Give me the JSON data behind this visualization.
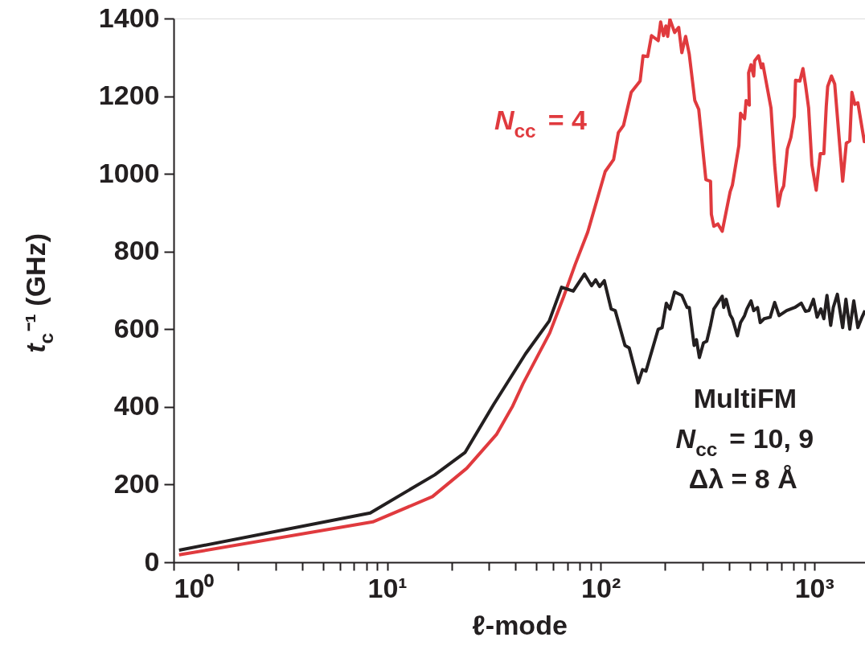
{
  "chart_data": {
    "type": "line",
    "xlabel": "ℓ-mode",
    "ylabel": "t$_{c}$⁻¹ (GHz)",
    "log": "x",
    "grid": false,
    "marker": "none",
    "line_style": "solid",
    "xlim": [
      1,
      1730
    ],
    "ylim": [
      0,
      1400
    ],
    "xticks": [
      {
        "value": 1,
        "label": "10⁰"
      },
      {
        "value": 2,
        "label": null
      },
      {
        "value": 3,
        "label": null
      },
      {
        "value": 4,
        "label": null
      },
      {
        "value": 5,
        "label": null
      },
      {
        "value": 6,
        "label": null
      },
      {
        "value": 7,
        "label": null
      },
      {
        "value": 8,
        "label": null
      },
      {
        "value": 9,
        "label": null
      },
      {
        "value": 10,
        "label": "10¹"
      },
      {
        "value": 20,
        "label": null
      },
      {
        "value": 30,
        "label": null
      },
      {
        "value": 40,
        "label": null
      },
      {
        "value": 50,
        "label": null
      },
      {
        "value": 60,
        "label": null
      },
      {
        "value": 70,
        "label": null
      },
      {
        "value": 80,
        "label": null
      },
      {
        "value": 90,
        "label": null
      },
      {
        "value": 100,
        "label": "10²"
      },
      {
        "value": 200,
        "label": null
      },
      {
        "value": 300,
        "label": null
      },
      {
        "value": 400,
        "label": null
      },
      {
        "value": 500,
        "label": null
      },
      {
        "value": 600,
        "label": null
      },
      {
        "value": 700,
        "label": null
      },
      {
        "value": 800,
        "label": null
      },
      {
        "value": 900,
        "label": null
      },
      {
        "value": 1000,
        "label": "10³"
      }
    ],
    "yticks": [
      0,
      200,
      400,
      600,
      800,
      1000,
      1200,
      1400
    ],
    "annotations": [
      "N$_{cc}$ = 10, 9",
      "Δλ = 8 Å"
    ],
    "series": [
      {
        "name": "N$_{cc}$ = 4",
        "color": "#e03a3e",
        "x": [
          1.06,
          8.56,
          16.3,
          23.6,
          32.5,
          38.7,
          43.3,
          57.7,
          67,
          76,
          87,
          105,
          115,
          121,
          128,
          139,
          153,
          158,
          166,
          173,
          186,
          191,
          197,
          202,
          206,
          211,
          222,
          232,
          240,
          250,
          260,
          276,
          288,
          311,
          327,
          330,
          339,
          354,
          371,
          404,
          414,
          444,
          452,
          472,
          480,
          497,
          493,
          506,
          521,
          526,
          549,
          566,
          575,
          628,
          653,
          679,
          700,
          720,
          749,
          778,
          807,
          818,
          857,
          886,
          911,
          942,
          976,
          1022,
          1068,
          1110,
          1139,
          1157,
          1205,
          1248,
          1360,
          1414,
          1468,
          1502,
          1550,
          1602,
          1717,
          1730
        ],
        "values": [
          19,
          104,
          169,
          242,
          329,
          402,
          460,
          590,
          683,
          767,
          850,
          1006,
          1037,
          1106,
          1125,
          1210,
          1239,
          1304,
          1302,
          1356,
          1343,
          1391,
          1356,
          1381,
          1354,
          1398,
          1364,
          1377,
          1312,
          1354,
          1308,
          1189,
          1166,
          985,
          981,
          896,
          865,
          871,
          852,
          954,
          971,
          1073,
          1156,
          1142,
          1189,
          1177,
          1260,
          1281,
          1252,
          1291,
          1304,
          1273,
          1283,
          1169,
          1023,
          917,
          954,
          969,
          1064,
          1094,
          1148,
          1241,
          1239,
          1271,
          1229,
          1169,
          1023,
          958,
          1052,
          1052,
          1173,
          1225,
          1252,
          1231,
          981,
          1079,
          1085,
          1210,
          1179,
          1183,
          1083,
          1100
        ]
      },
      {
        "name": "MultiFM",
        "color": "#231f20",
        "x": [
          1.06,
          8.33,
          16.7,
          23.2,
          31.5,
          44.5,
          57.4,
          65.6,
          74.4,
          84,
          90.7,
          94.8,
          98.9,
          104,
          112,
          117,
          130,
          136,
          150,
          157,
          163,
          186,
          194,
          203,
          211,
          222,
          240,
          254,
          260,
          274,
          281,
          290,
          303,
          314,
          327,
          339,
          371,
          377,
          387,
          404,
          414,
          425,
          437,
          452,
          472,
          484,
          506,
          521,
          543,
          559,
          583,
          622,
          653,
          685,
          743,
          812,
          870,
          911,
          946,
          992,
          1032,
          1075,
          1110,
          1148,
          1195,
          1229,
          1284,
          1360,
          1408,
          1468,
          1533,
          1602,
          1675,
          1730
        ],
        "values": [
          31,
          127,
          225,
          283,
          406,
          537,
          621,
          708,
          698,
          742,
          712,
          727,
          710,
          725,
          652,
          648,
          558,
          552,
          462,
          496,
          492,
          600,
          604,
          667,
          652,
          696,
          687,
          656,
          656,
          558,
          573,
          527,
          565,
          569,
          610,
          652,
          685,
          656,
          677,
          637,
          627,
          606,
          583,
          617,
          635,
          652,
          673,
          648,
          656,
          617,
          627,
          631,
          669,
          635,
          648,
          656,
          667,
          646,
          648,
          677,
          631,
          652,
          627,
          687,
          610,
          656,
          690,
          604,
          677,
          600,
          673,
          604,
          631,
          648
        ]
      }
    ]
  }
}
